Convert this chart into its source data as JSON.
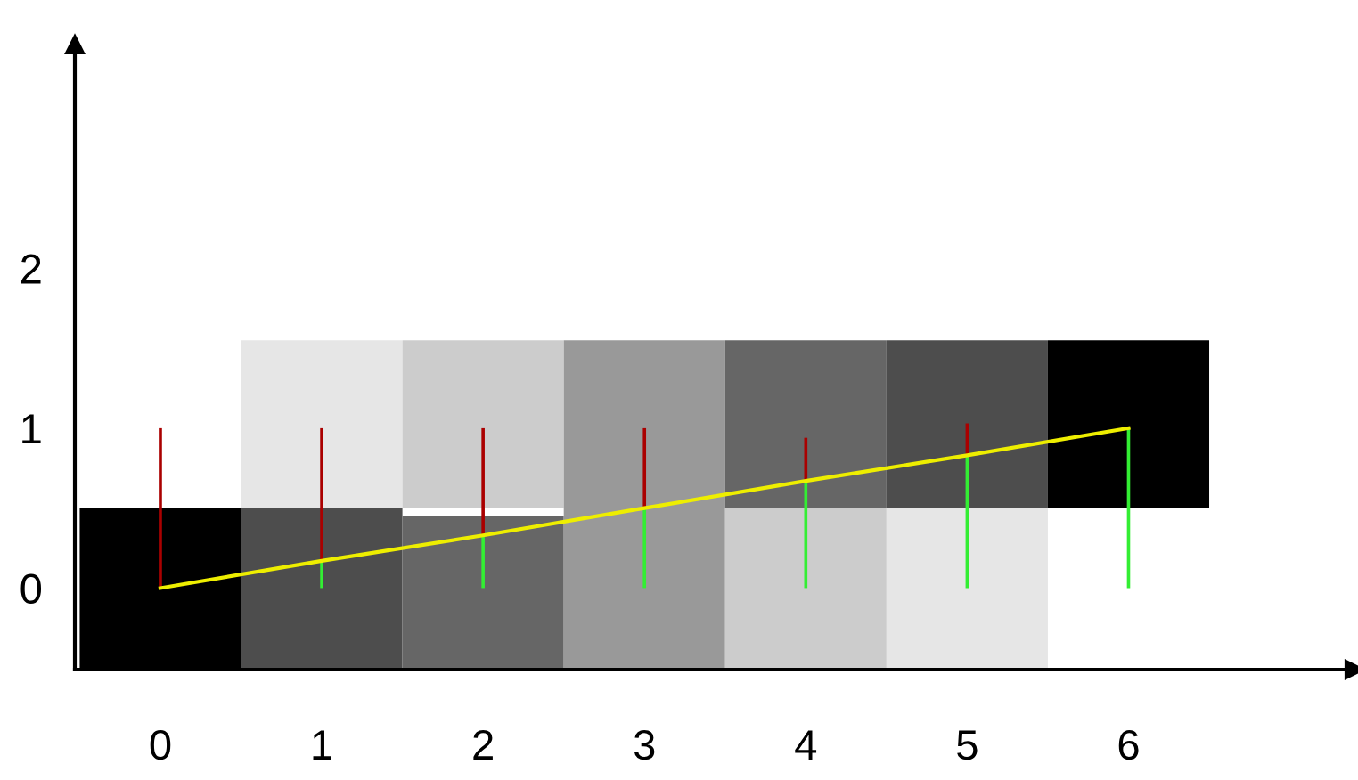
{
  "chart_data": {
    "type": "bar",
    "x": [
      0,
      1,
      2,
      3,
      4,
      5,
      6
    ],
    "series": [
      {
        "colors": [
          "#000000",
          "#4d4d4d",
          "#666666",
          "#999999",
          "#cccccc",
          "#e6e6e6",
          null
        ],
        "base": [
          -0.5,
          -0.5,
          -0.5,
          -0.5,
          -0.5,
          -0.5,
          null
        ],
        "values": [
          1.0,
          1.0,
          0.95,
          1.0,
          1.0,
          1.0,
          null
        ]
      },
      {
        "colors": [
          null,
          "#e6e6e6",
          "#cccccc",
          "#999999",
          "#666666",
          "#4d4d4d",
          "#000000"
        ],
        "base": [
          null,
          0.5,
          0.5,
          0.5,
          0.5,
          0.5,
          0.5
        ],
        "values": [
          null,
          1.05,
          1.05,
          1.05,
          1.05,
          1.05,
          1.05
        ]
      },
      {
        "color": "#aa0000",
        "base": [
          0,
          0.17,
          0.33,
          0.5,
          0.67,
          0.83,
          null
        ],
        "values": [
          1,
          0.83,
          0.67,
          0.5,
          0.27,
          0.2,
          null
        ]
      },
      {
        "color": "#33ee33",
        "base": [
          null,
          0,
          0,
          0,
          0,
          0,
          0
        ],
        "values": [
          null,
          0.17,
          0.33,
          0.5,
          0.67,
          0.83,
          1
        ]
      },
      {
        "type": "line",
        "color": "#eeee00",
        "values": [
          0,
          0.17,
          0.33,
          0.5,
          0.67,
          0.83,
          1
        ]
      }
    ],
    "xlim": [
      -0.53,
      7.4
    ],
    "ylim": [
      -0.51,
      3.4
    ],
    "xticks": [
      0,
      1,
      2,
      3,
      4,
      5,
      6
    ],
    "yticks": [
      0,
      1,
      2
    ],
    "grid": false,
    "legend": false
  }
}
